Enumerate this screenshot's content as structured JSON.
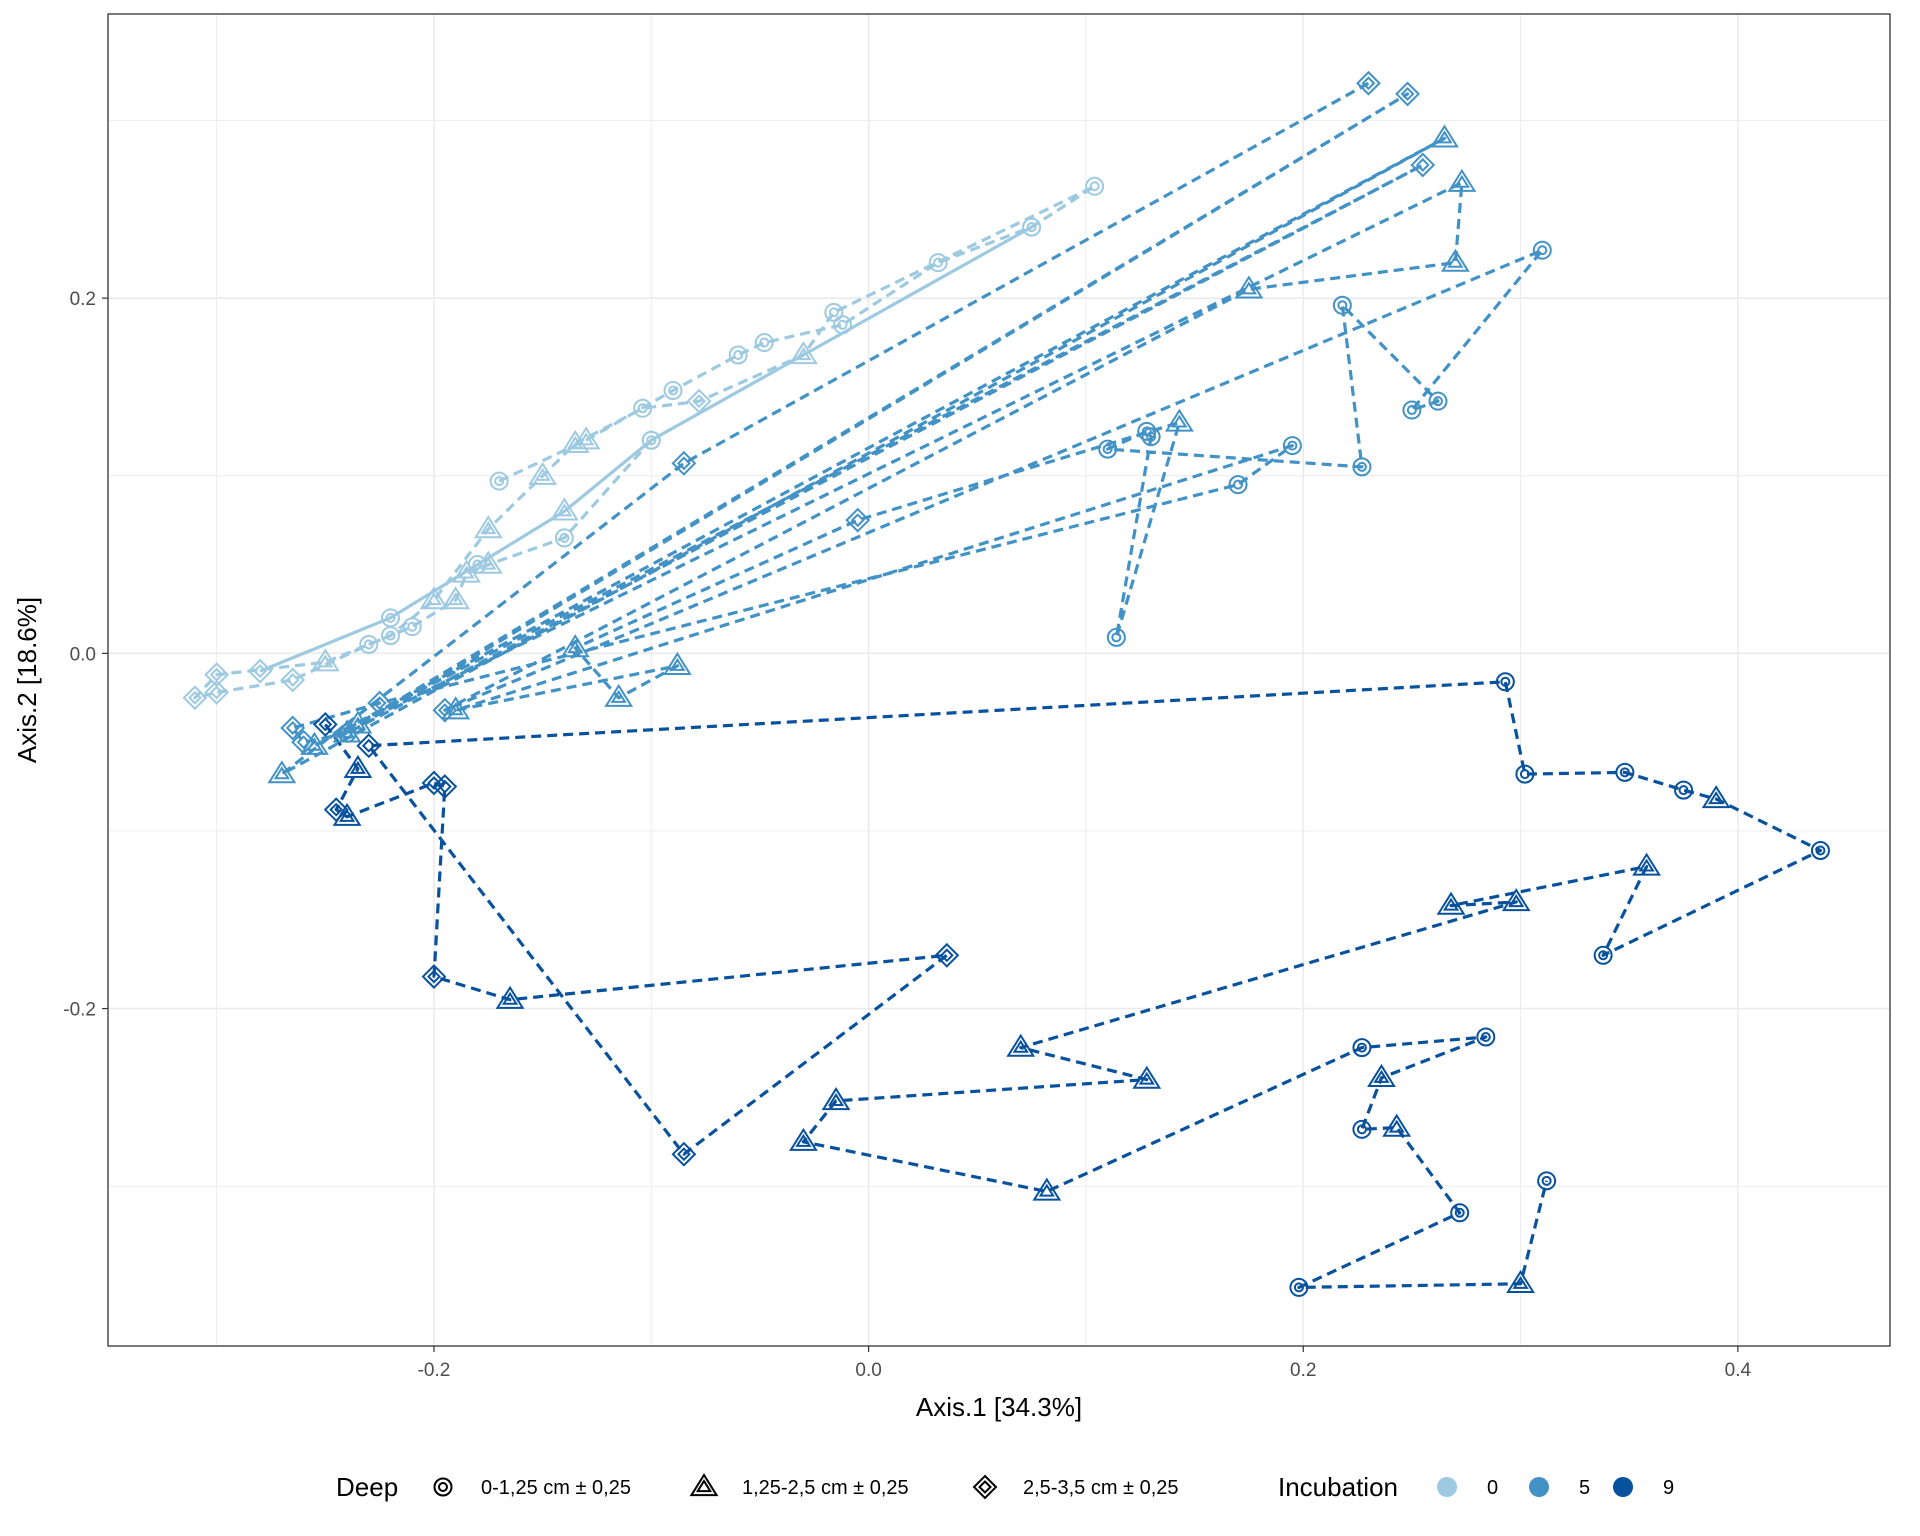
{
  "chart_data": {
    "type": "scatter",
    "xlabel": "Axis.1   [34.3%]",
    "ylabel": "Axis.2   [18.6%]",
    "xlim": [
      -0.35,
      0.47
    ],
    "ylim": [
      -0.39,
      0.36
    ],
    "x_ticks": [
      -0.2,
      0.0,
      0.2,
      0.4
    ],
    "x_tick_labels": [
      "-0.2",
      "0.0",
      "0.2",
      "0.4"
    ],
    "y_ticks": [
      -0.2,
      0.0,
      0.2
    ],
    "y_tick_labels": [
      "-0.2",
      "0.0",
      "0.2"
    ],
    "grid": true,
    "legend_position": "bottom",
    "legend": {
      "shape": {
        "title": "Deep",
        "items": [
          {
            "label": "0-1,25 cm ± 0,25",
            "shape": "circle"
          },
          {
            "label": "1,25-2,5 cm ± 0,25",
            "shape": "triangle"
          },
          {
            "label": "2,5-3,5 cm ± 0,25",
            "shape": "diamond"
          }
        ]
      },
      "color": {
        "title": "Incubation",
        "items": [
          {
            "label": "0",
            "color": "#9ecae1"
          },
          {
            "label": "5",
            "color": "#4292c6"
          },
          {
            "label": "9",
            "color": "#08519c"
          }
        ]
      }
    },
    "series": [
      {
        "incubation": "0",
        "color": "#9ecae1",
        "linestyle": "dashed",
        "points": [
          {
            "x": -0.17,
            "y": 0.097,
            "shape": "circle"
          },
          {
            "x": -0.13,
            "y": 0.12,
            "shape": "triangle"
          },
          {
            "x": -0.09,
            "y": 0.148,
            "shape": "circle"
          },
          {
            "x": -0.06,
            "y": 0.168,
            "shape": "circle"
          },
          {
            "x": -0.048,
            "y": 0.175,
            "shape": "circle"
          },
          {
            "x": -0.012,
            "y": 0.185,
            "shape": "circle"
          },
          {
            "x": 0.032,
            "y": 0.22,
            "shape": "circle"
          },
          {
            "x": 0.075,
            "y": 0.24,
            "shape": "circle"
          },
          {
            "x": 0.104,
            "y": 0.263,
            "shape": "circle"
          },
          {
            "x": -0.016,
            "y": 0.192,
            "shape": "circle"
          },
          {
            "x": -0.03,
            "y": 0.168,
            "shape": "triangle"
          },
          {
            "x": -0.078,
            "y": 0.142,
            "shape": "diamond"
          },
          {
            "x": -0.104,
            "y": 0.138,
            "shape": "circle"
          },
          {
            "x": -0.135,
            "y": 0.118,
            "shape": "triangle"
          },
          {
            "x": -0.15,
            "y": 0.1,
            "shape": "triangle"
          },
          {
            "x": -0.175,
            "y": 0.07,
            "shape": "triangle"
          },
          {
            "x": -0.2,
            "y": 0.03,
            "shape": "triangle"
          },
          {
            "x": -0.22,
            "y": 0.01,
            "shape": "circle"
          },
          {
            "x": -0.25,
            "y": -0.005,
            "shape": "triangle"
          },
          {
            "x": -0.3,
            "y": -0.012,
            "shape": "diamond"
          },
          {
            "x": -0.31,
            "y": -0.025,
            "shape": "diamond"
          },
          {
            "x": -0.3,
            "y": -0.022,
            "shape": "diamond"
          },
          {
            "x": -0.265,
            "y": -0.015,
            "shape": "diamond"
          },
          {
            "x": -0.23,
            "y": 0.005,
            "shape": "circle"
          },
          {
            "x": -0.21,
            "y": 0.015,
            "shape": "circle"
          },
          {
            "x": -0.19,
            "y": 0.03,
            "shape": "triangle"
          },
          {
            "x": -0.185,
            "y": 0.045,
            "shape": "triangle"
          },
          {
            "x": -0.175,
            "y": 0.05,
            "shape": "triangle"
          },
          {
            "x": -0.14,
            "y": 0.065,
            "shape": "circle"
          },
          {
            "x": -0.1,
            "y": 0.12,
            "shape": "circle"
          }
        ]
      },
      {
        "incubation": "0",
        "color": "#9ecae1",
        "linestyle": "solid",
        "points": [
          {
            "x": -0.28,
            "y": -0.01,
            "shape": "diamond"
          },
          {
            "x": -0.22,
            "y": 0.02,
            "shape": "circle"
          },
          {
            "x": -0.18,
            "y": 0.05,
            "shape": "circle"
          },
          {
            "x": -0.14,
            "y": 0.08,
            "shape": "triangle"
          },
          {
            "x": -0.1,
            "y": 0.12,
            "shape": "circle"
          },
          {
            "x": 0.075,
            "y": 0.24,
            "shape": "circle"
          }
        ]
      },
      {
        "incubation": "5",
        "color": "#4292c6",
        "linestyle": "dashed",
        "points": [
          {
            "x": 0.23,
            "y": 0.321,
            "shape": "diamond"
          },
          {
            "x": -0.085,
            "y": 0.107,
            "shape": "diamond"
          },
          {
            "x": -0.27,
            "y": -0.068,
            "shape": "triangle"
          },
          {
            "x": 0.265,
            "y": 0.29,
            "shape": "triangle"
          },
          {
            "x": -0.255,
            "y": -0.052,
            "shape": "triangle"
          },
          {
            "x": 0.255,
            "y": 0.275,
            "shape": "diamond"
          },
          {
            "x": -0.24,
            "y": -0.045,
            "shape": "circle"
          },
          {
            "x": 0.248,
            "y": 0.315,
            "shape": "diamond"
          },
          {
            "x": -0.235,
            "y": -0.04,
            "shape": "triangle"
          },
          {
            "x": 0.273,
            "y": 0.265,
            "shape": "triangle"
          },
          {
            "x": 0.27,
            "y": 0.22,
            "shape": "triangle"
          },
          {
            "x": 0.175,
            "y": 0.205,
            "shape": "triangle"
          },
          {
            "x": -0.195,
            "y": -0.032,
            "shape": "diamond"
          },
          {
            "x": 0.31,
            "y": 0.227,
            "shape": "circle"
          },
          {
            "x": 0.25,
            "y": 0.137,
            "shape": "circle"
          },
          {
            "x": 0.262,
            "y": 0.142,
            "shape": "circle"
          },
          {
            "x": 0.218,
            "y": 0.196,
            "shape": "circle"
          },
          {
            "x": 0.227,
            "y": 0.105,
            "shape": "circle"
          },
          {
            "x": 0.11,
            "y": 0.115,
            "shape": "circle"
          },
          {
            "x": 0.128,
            "y": 0.125,
            "shape": "circle"
          },
          {
            "x": 0.13,
            "y": 0.122,
            "shape": "circle"
          },
          {
            "x": 0.114,
            "y": 0.009,
            "shape": "circle"
          },
          {
            "x": 0.143,
            "y": 0.13,
            "shape": "triangle"
          },
          {
            "x": -0.005,
            "y": 0.075,
            "shape": "diamond"
          },
          {
            "x": -0.135,
            "y": 0.003,
            "shape": "triangle"
          },
          {
            "x": -0.115,
            "y": -0.025,
            "shape": "triangle"
          },
          {
            "x": -0.088,
            "y": -0.007,
            "shape": "triangle"
          },
          {
            "x": -0.19,
            "y": -0.032,
            "shape": "triangle"
          },
          {
            "x": 0.195,
            "y": 0.117,
            "shape": "circle"
          },
          {
            "x": 0.17,
            "y": 0.095,
            "shape": "circle"
          },
          {
            "x": -0.225,
            "y": -0.028,
            "shape": "diamond"
          },
          {
            "x": -0.265,
            "y": -0.042,
            "shape": "diamond"
          },
          {
            "x": -0.26,
            "y": -0.05,
            "shape": "diamond"
          },
          {
            "x": -0.24,
            "y": -0.045,
            "shape": "triangle"
          }
        ]
      },
      {
        "incubation": "9",
        "color": "#08519c",
        "linestyle": "dashed",
        "points": [
          {
            "x": -0.25,
            "y": -0.04,
            "shape": "diamond"
          },
          {
            "x": -0.235,
            "y": -0.065,
            "shape": "triangle"
          },
          {
            "x": -0.245,
            "y": -0.088,
            "shape": "diamond"
          },
          {
            "x": -0.24,
            "y": -0.092,
            "shape": "triangle"
          },
          {
            "x": -0.2,
            "y": -0.073,
            "shape": "diamond"
          },
          {
            "x": -0.195,
            "y": -0.075,
            "shape": "diamond"
          },
          {
            "x": -0.2,
            "y": -0.182,
            "shape": "diamond"
          },
          {
            "x": -0.165,
            "y": -0.195,
            "shape": "triangle"
          },
          {
            "x": 0.036,
            "y": -0.17,
            "shape": "diamond"
          },
          {
            "x": -0.085,
            "y": -0.282,
            "shape": "diamond"
          },
          {
            "x": -0.23,
            "y": -0.052,
            "shape": "diamond"
          },
          {
            "x": 0.293,
            "y": -0.016,
            "shape": "circle"
          },
          {
            "x": 0.302,
            "y": -0.068,
            "shape": "circle"
          },
          {
            "x": 0.348,
            "y": -0.067,
            "shape": "circle"
          },
          {
            "x": 0.375,
            "y": -0.077,
            "shape": "circle"
          },
          {
            "x": 0.39,
            "y": -0.082,
            "shape": "triangle"
          },
          {
            "x": 0.438,
            "y": -0.111,
            "shape": "circle"
          },
          {
            "x": 0.338,
            "y": -0.17,
            "shape": "circle"
          },
          {
            "x": 0.358,
            "y": -0.12,
            "shape": "triangle"
          },
          {
            "x": 0.268,
            "y": -0.142,
            "shape": "triangle"
          },
          {
            "x": 0.298,
            "y": -0.14,
            "shape": "triangle"
          },
          {
            "x": 0.07,
            "y": -0.222,
            "shape": "triangle"
          },
          {
            "x": 0.128,
            "y": -0.24,
            "shape": "triangle"
          },
          {
            "x": -0.015,
            "y": -0.252,
            "shape": "triangle"
          },
          {
            "x": -0.03,
            "y": -0.275,
            "shape": "triangle"
          },
          {
            "x": 0.082,
            "y": -0.303,
            "shape": "triangle"
          },
          {
            "x": 0.227,
            "y": -0.222,
            "shape": "circle"
          },
          {
            "x": 0.284,
            "y": -0.216,
            "shape": "circle"
          },
          {
            "x": 0.236,
            "y": -0.239,
            "shape": "triangle"
          },
          {
            "x": 0.227,
            "y": -0.268,
            "shape": "circle"
          },
          {
            "x": 0.243,
            "y": -0.267,
            "shape": "triangle"
          },
          {
            "x": 0.272,
            "y": -0.315,
            "shape": "circle"
          },
          {
            "x": 0.198,
            "y": -0.357,
            "shape": "circle"
          },
          {
            "x": 0.3,
            "y": -0.355,
            "shape": "triangle"
          },
          {
            "x": 0.312,
            "y": -0.297,
            "shape": "circle"
          }
        ]
      }
    ]
  }
}
